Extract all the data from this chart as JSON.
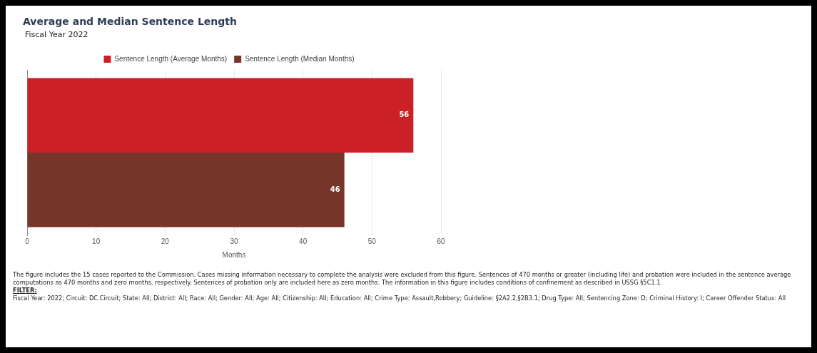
{
  "chart_data": {
    "type": "bar",
    "orientation": "horizontal",
    "title": "Average and Median Sentence Length",
    "subtitle": "Fiscal Year 2022",
    "xlabel": "Months",
    "categories": [
      null
    ],
    "series": [
      {
        "name": "Sentence Length (Average Months)",
        "color": "#cc2027",
        "values": [
          56
        ]
      },
      {
        "name": "Sentence Length (Median Months)",
        "color": "#77352a",
        "values": [
          46
        ]
      }
    ],
    "xlim": [
      0,
      60
    ],
    "xticks": [
      0,
      10,
      20,
      30,
      40,
      50,
      60
    ],
    "grid": "x",
    "legend": "top",
    "data_labels": true,
    "annotations": [
      "The figure includes the 15 cases reported to the Commission. Cases missing information necessary to complete the analysis were excluded from this figure. Sentences of 470 months or greater (including life) and probation were included in the sentence average computations as 470 months and zero months, respectively. Sentences of probation only are included here as zero months. The information in this figure includes conditions of confinement as described in USSG §5C1.1.",
      "FILTER:",
      "Fiscal Year: 2022; Circuit: DC Circuit; State: All; District: All; Race: All; Gender: All; Age: All; Citizenship: All; Education: All; Crime Type: Assault,Robbery; Guideline: §2A2.2,§2B3.1; Drug Type: All; Sentencing Zone: D; Criminal History: I; Career Offender Status: All"
    ]
  }
}
